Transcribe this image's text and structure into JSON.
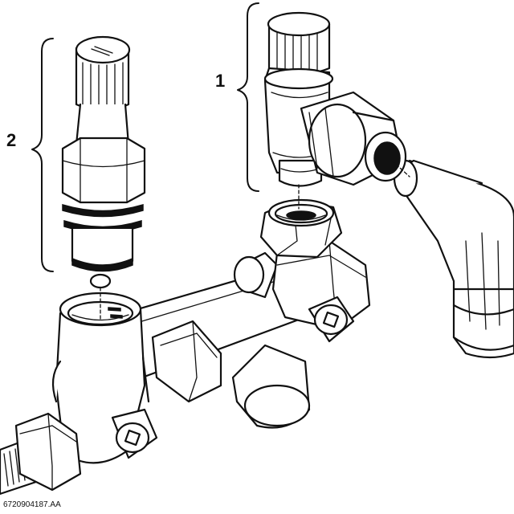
{
  "callouts": {
    "part_1": "1",
    "part_2": "2"
  },
  "reference_code": "6720904187.AA",
  "colors": {
    "line": "#111111",
    "background": "#ffffff"
  }
}
